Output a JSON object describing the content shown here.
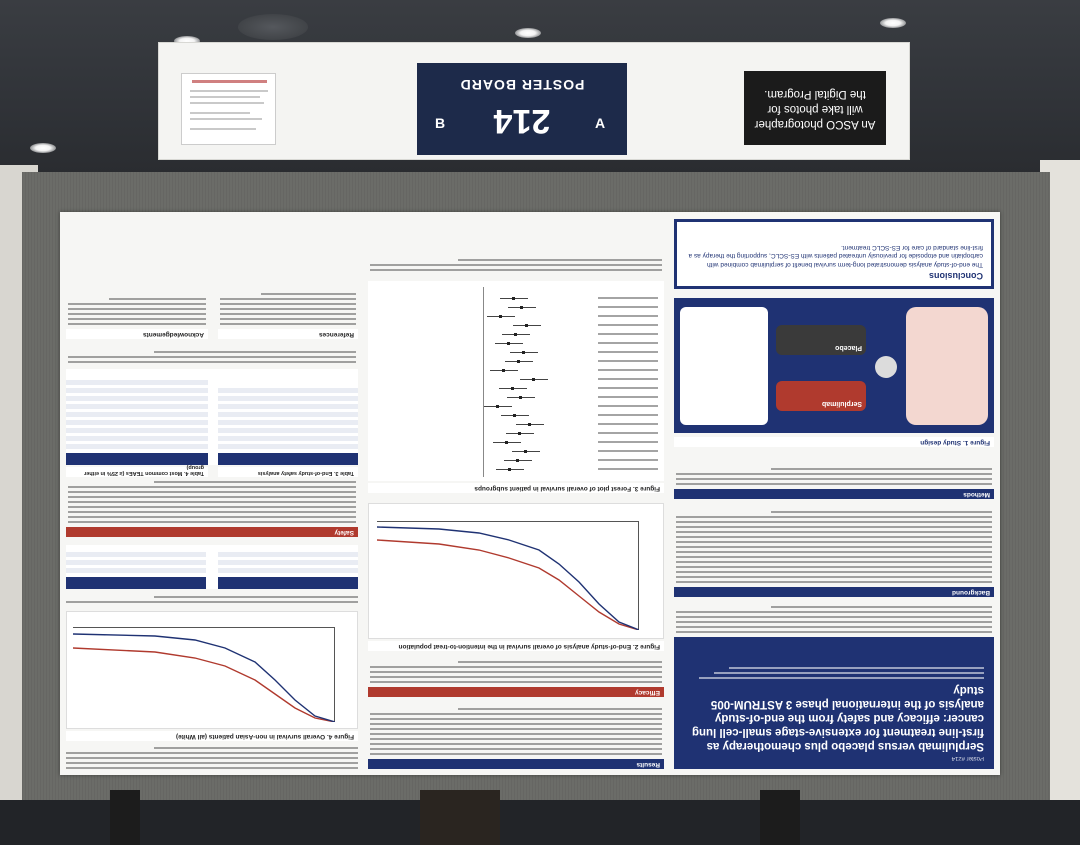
{
  "sign": {
    "board_label": "POSTER BOARD",
    "board_number": "214",
    "side_a": "A",
    "side_b": "B",
    "notice_lines": [
      "An ASCO photographer",
      "will take photos for",
      "the Digital Program."
    ]
  },
  "poster": {
    "poster_number": "Poster #214",
    "title": "Serplulimab versus placebo plus chemotherapy as first-line treatment for extensive-stage small-cell lung cancer: efficacy and safety from the end-of-study analysis of the international phase 3 ASTRUM-005 study",
    "sections": {
      "background": "Background",
      "methods": "Methods",
      "results": "Results",
      "efficacy": "Efficacy",
      "safety": "Safety",
      "conclusions": "Conclusions",
      "references": "References",
      "acknowledgements": "Acknowledgements"
    },
    "figure_labels": {
      "fig1": "Figure 1. Study design",
      "fig2": "Figure 2. End-of-study analysis of overall survival in the intention-to-treat population",
      "fig3": "Figure 3. Forest plot of overall survival in patient subgroups",
      "fig4": "Figure 4. Overall survival in non-Asian patients (all White)",
      "table3": "Table 3. End-of-study safety analysis",
      "table4": "Table 4. Most common TEAEs (≥ 25% in either group)"
    },
    "study_arms": {
      "arm1": "Serplulimab",
      "arm2": "Placebo"
    },
    "conclusion_text": "The end-of-study analysis demonstrated long-term survival benefit of serplulimab combined with carboplatin and etoposide for previously untreated patients with ES-SCLC, supporting the therapy as a first-line standard of care for ES-SCLC treatment."
  },
  "colors": {
    "navy": "#1f3273",
    "red": "#b03a2e",
    "fabric": "#6b6c68"
  }
}
